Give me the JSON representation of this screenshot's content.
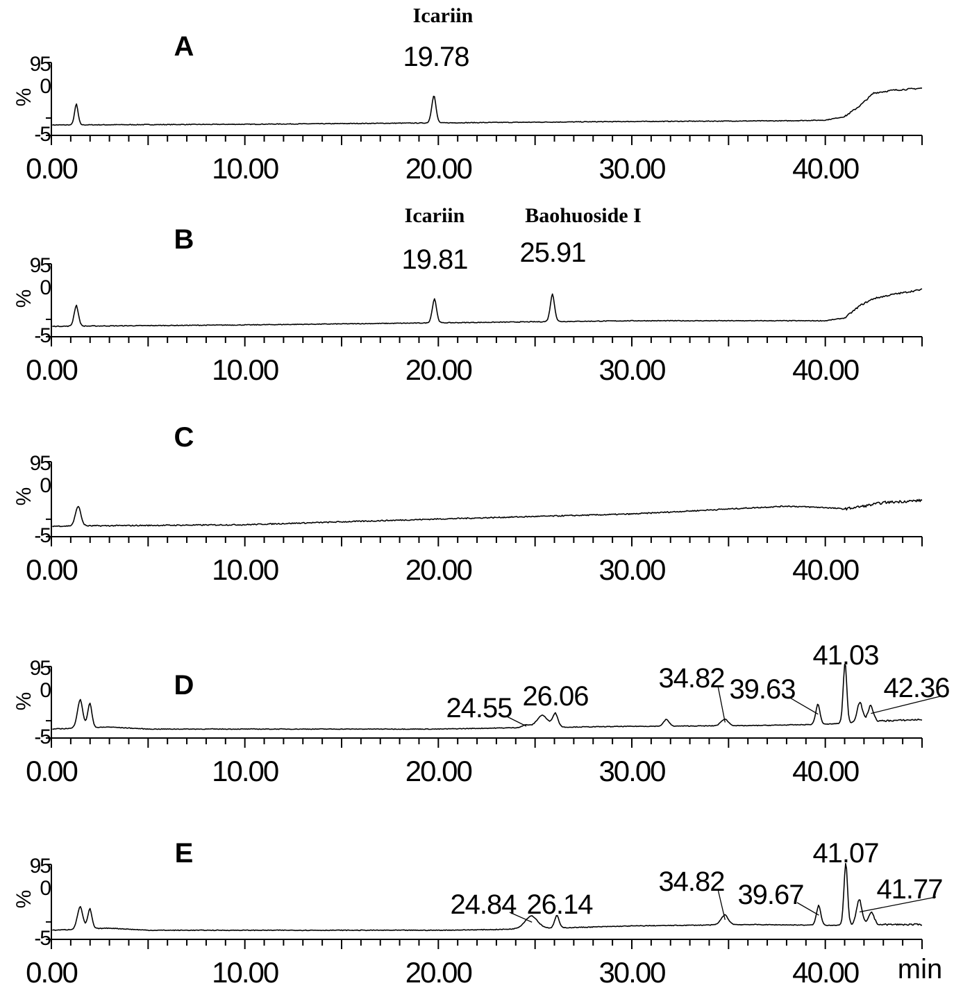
{
  "chart_data": [
    {
      "type": "line",
      "panel_label": "A",
      "x_unit": "",
      "xlim": [
        0,
        45
      ],
      "ylim": [
        -5,
        100
      ],
      "yticks": [
        "95",
        "0",
        "-5"
      ],
      "ylabel": "%",
      "xtick_labels": [
        "0.00",
        "10.00",
        "20.00",
        "30.00",
        "40.00"
      ],
      "baseline": [
        [
          0,
          2
        ],
        [
          10,
          3
        ],
        [
          20,
          5
        ],
        [
          30,
          7
        ],
        [
          38,
          8
        ],
        [
          40,
          9
        ],
        [
          41,
          14
        ],
        [
          41.8,
          30
        ],
        [
          42.5,
          48
        ],
        [
          43.5,
          52
        ],
        [
          45,
          55
        ]
      ],
      "peaks": [
        {
          "rt": 19.78,
          "label": "19.78",
          "height": 40,
          "width": 0.12,
          "compound": "Icariin"
        },
        {
          "rt": 1.3,
          "label": "",
          "height": 30,
          "width": 0.1,
          "compound": ""
        }
      ]
    },
    {
      "type": "line",
      "panel_label": "B",
      "x_unit": "",
      "xlim": [
        0,
        45
      ],
      "ylim": [
        -5,
        100
      ],
      "yticks": [
        "95",
        "0",
        "-5"
      ],
      "ylabel": "%",
      "xtick_labels": [
        "0.00",
        "10.00",
        "20.00",
        "30.00",
        "40.00"
      ],
      "baseline": [
        [
          0,
          2
        ],
        [
          10,
          4
        ],
        [
          20,
          7
        ],
        [
          30,
          10
        ],
        [
          38,
          10
        ],
        [
          40,
          10
        ],
        [
          41,
          14
        ],
        [
          41.8,
          32
        ],
        [
          42.5,
          42
        ],
        [
          43.5,
          48
        ],
        [
          45,
          55
        ]
      ],
      "peaks": [
        {
          "rt": 19.81,
          "label": "19.81",
          "height": 35,
          "width": 0.12,
          "compound": "Icariin"
        },
        {
          "rt": 25.91,
          "label": "25.91",
          "height": 40,
          "width": 0.12,
          "compound": "Baohuoside I"
        },
        {
          "rt": 1.3,
          "label": "",
          "height": 30,
          "width": 0.12,
          "compound": ""
        }
      ]
    },
    {
      "type": "line",
      "panel_label": "C",
      "x_unit": "",
      "xlim": [
        0,
        45
      ],
      "ylim": [
        -5,
        100
      ],
      "yticks": [
        "95",
        "0",
        "-5"
      ],
      "ylabel": "%",
      "xtick_labels": [
        "0.00",
        "10.00",
        "20.00",
        "30.00",
        "40.00"
      ],
      "baseline": [
        [
          0,
          2
        ],
        [
          10,
          4
        ],
        [
          20,
          12
        ],
        [
          30,
          19
        ],
        [
          35,
          26
        ],
        [
          38,
          30
        ],
        [
          40,
          28
        ],
        [
          41,
          26
        ],
        [
          42,
          30
        ],
        [
          43,
          35
        ],
        [
          45,
          38
        ]
      ],
      "peaks": [
        {
          "rt": 1.4,
          "label": "",
          "height": 28,
          "width": 0.15,
          "compound": ""
        }
      ]
    },
    {
      "type": "line",
      "panel_label": "D",
      "x_unit": "",
      "xlim": [
        0,
        45
      ],
      "ylim": [
        -5,
        100
      ],
      "yticks": [
        "95",
        "0",
        "-5"
      ],
      "ylabel": "%",
      "xtick_labels": [
        "0.00",
        "10.00",
        "20.00",
        "30.00",
        "40.00"
      ],
      "baseline": [
        [
          0,
          0
        ],
        [
          3,
          3
        ],
        [
          5,
          0
        ],
        [
          20,
          0
        ],
        [
          24,
          2
        ],
        [
          30,
          4
        ],
        [
          36,
          5
        ],
        [
          40,
          7
        ],
        [
          43,
          12
        ],
        [
          45,
          14
        ]
      ],
      "peaks": [
        {
          "rt": 1.5,
          "label": "",
          "height": 42,
          "width": 0.15,
          "compound": ""
        },
        {
          "rt": 2.0,
          "label": "",
          "height": 36,
          "width": 0.12,
          "compound": ""
        },
        {
          "rt": 24.55,
          "label": "24.55",
          "height": 4,
          "width": 0.2,
          "compound": ""
        },
        {
          "rt": 25.4,
          "label": "",
          "height": 18,
          "width": 0.3,
          "compound": ""
        },
        {
          "rt": 26.06,
          "label": "26.06",
          "height": 20,
          "width": 0.15,
          "compound": ""
        },
        {
          "rt": 31.8,
          "label": "",
          "height": 10,
          "width": 0.15,
          "compound": ""
        },
        {
          "rt": 34.82,
          "label": "34.82",
          "height": 10,
          "width": 0.2,
          "compound": ""
        },
        {
          "rt": 39.63,
          "label": "39.63",
          "height": 30,
          "width": 0.12,
          "compound": ""
        },
        {
          "rt": 41.03,
          "label": "41.03",
          "height": 90,
          "width": 0.1,
          "compound": ""
        },
        {
          "rt": 41.8,
          "label": "",
          "height": 30,
          "width": 0.15,
          "compound": ""
        },
        {
          "rt": 42.36,
          "label": "42.36",
          "height": 24,
          "width": 0.15,
          "compound": ""
        }
      ]
    },
    {
      "type": "line",
      "panel_label": "E",
      "x_unit": "min",
      "xlim": [
        0,
        45
      ],
      "ylim": [
        -5,
        100
      ],
      "yticks": [
        "95",
        "0",
        "-5"
      ],
      "ylabel": "%",
      "xtick_labels": [
        "0.00",
        "10.00",
        "20.00",
        "30.00",
        "40.00"
      ],
      "baseline": [
        [
          0,
          0
        ],
        [
          3,
          3
        ],
        [
          5,
          0
        ],
        [
          20,
          0
        ],
        [
          23,
          1
        ],
        [
          30,
          6
        ],
        [
          36,
          8
        ],
        [
          40,
          7
        ],
        [
          43,
          8
        ],
        [
          45,
          8
        ]
      ],
      "peaks": [
        {
          "rt": 1.5,
          "label": "",
          "height": 32,
          "width": 0.15,
          "compound": ""
        },
        {
          "rt": 2.0,
          "label": "",
          "height": 28,
          "width": 0.12,
          "compound": ""
        },
        {
          "rt": 24.84,
          "label": "24.84",
          "height": 18,
          "width": 0.35,
          "compound": ""
        },
        {
          "rt": 26.14,
          "label": "26.14",
          "height": 18,
          "width": 0.12,
          "compound": ""
        },
        {
          "rt": 34.82,
          "label": "34.82",
          "height": 14,
          "width": 0.2,
          "compound": ""
        },
        {
          "rt": 39.67,
          "label": "39.67",
          "height": 28,
          "width": 0.12,
          "compound": ""
        },
        {
          "rt": 41.07,
          "label": "41.07",
          "height": 88,
          "width": 0.1,
          "compound": ""
        },
        {
          "rt": 41.77,
          "label": "41.77",
          "height": 36,
          "width": 0.15,
          "compound": ""
        },
        {
          "rt": 42.4,
          "label": "",
          "height": 18,
          "width": 0.15,
          "compound": ""
        }
      ]
    }
  ]
}
